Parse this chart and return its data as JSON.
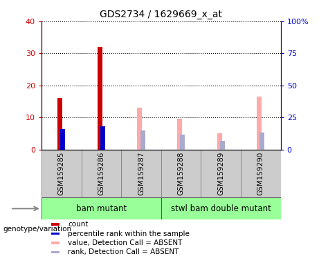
{
  "title": "GDS2734 / 1629669_x_at",
  "samples": [
    "GSM159285",
    "GSM159286",
    "GSM159287",
    "GSM159288",
    "GSM159289",
    "GSM159290"
  ],
  "count_values": [
    16,
    32,
    null,
    null,
    null,
    null
  ],
  "percentile_values": [
    16,
    18,
    null,
    null,
    null,
    null
  ],
  "value_absent": [
    null,
    null,
    13,
    9.5,
    5,
    16.5
  ],
  "rank_absent": [
    null,
    null,
    15,
    11.5,
    7,
    13
  ],
  "ylim_left": [
    0,
    40
  ],
  "ylim_right": [
    0,
    100
  ],
  "yticks_left": [
    0,
    10,
    20,
    30,
    40
  ],
  "yticks_right": [
    0,
    25,
    50,
    75,
    100
  ],
  "ytick_labels_left": [
    "0",
    "10",
    "20",
    "30",
    "40"
  ],
  "ytick_labels_right": [
    "0",
    "25",
    "50",
    "75",
    "100%"
  ],
  "group1_label": "bam mutant",
  "group2_label": "stwl bam double mutant",
  "group1_range": [
    0,
    2
  ],
  "group2_range": [
    3,
    5
  ],
  "genotype_label": "genotype/variation",
  "color_count": "#cc0000",
  "color_percentile": "#0000cc",
  "color_value_absent": "#ffaaaa",
  "color_rank_absent": "#aaaacc",
  "color_group1": "#99ff99",
  "color_group2": "#66ee66",
  "color_sample_box": "#cccccc",
  "bar_width": 0.12,
  "legend_items": [
    {
      "color": "#cc0000",
      "label": "count"
    },
    {
      "color": "#0000cc",
      "label": "percentile rank within the sample"
    },
    {
      "color": "#ffaaaa",
      "label": "value, Detection Call = ABSENT"
    },
    {
      "color": "#aaaacc",
      "label": "rank, Detection Call = ABSENT"
    }
  ]
}
